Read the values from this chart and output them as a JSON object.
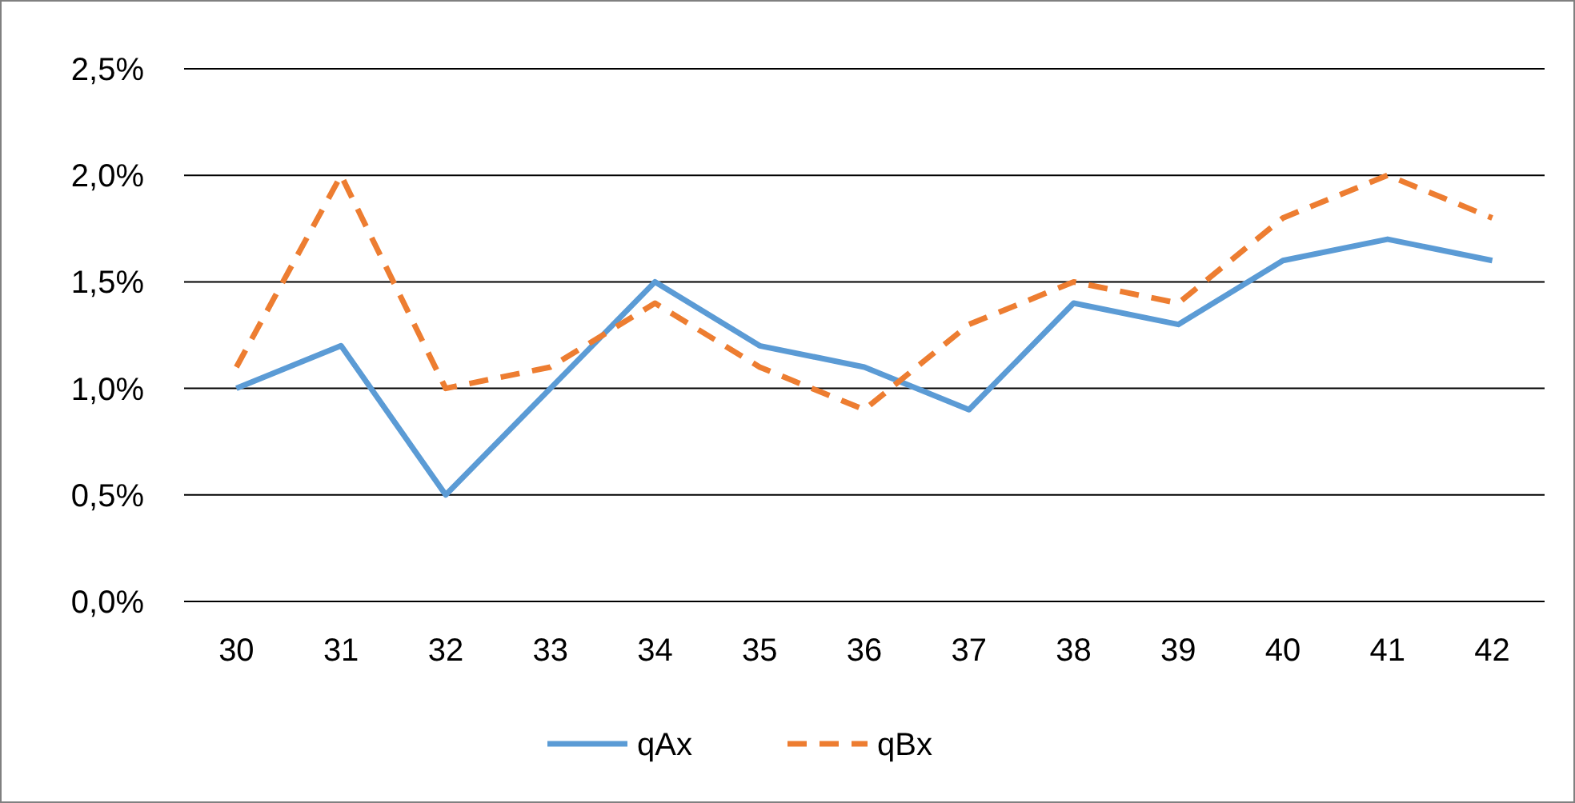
{
  "chart_data": {
    "type": "line",
    "categories": [
      "30",
      "31",
      "32",
      "33",
      "34",
      "35",
      "36",
      "37",
      "38",
      "39",
      "40",
      "41",
      "42"
    ],
    "series": [
      {
        "name": "qAx",
        "color": "#5b9bd5",
        "line_style": "solid",
        "values": [
          1.0,
          1.2,
          0.5,
          1.0,
          1.5,
          1.2,
          1.1,
          0.9,
          1.4,
          1.3,
          1.6,
          1.7,
          1.6
        ]
      },
      {
        "name": "qBx",
        "color": "#ed7d31",
        "line_style": "dashed",
        "values": [
          1.1,
          2.0,
          1.0,
          1.1,
          1.4,
          1.1,
          0.9,
          1.3,
          1.5,
          1.4,
          1.8,
          2.0,
          1.8
        ]
      }
    ],
    "ylim": [
      0,
      2.5
    ],
    "yticks": [
      {
        "value": 0,
        "label": "0,0%"
      },
      {
        "value": 0.5,
        "label": "0,5%"
      },
      {
        "value": 1,
        "label": "1,0%"
      },
      {
        "value": 1.5,
        "label": "1,5%"
      },
      {
        "value": 2,
        "label": "2,0%"
      },
      {
        "value": 2.5,
        "label": "2,5%"
      }
    ],
    "grid": "y",
    "legend": "bottom",
    "marker": "none"
  }
}
